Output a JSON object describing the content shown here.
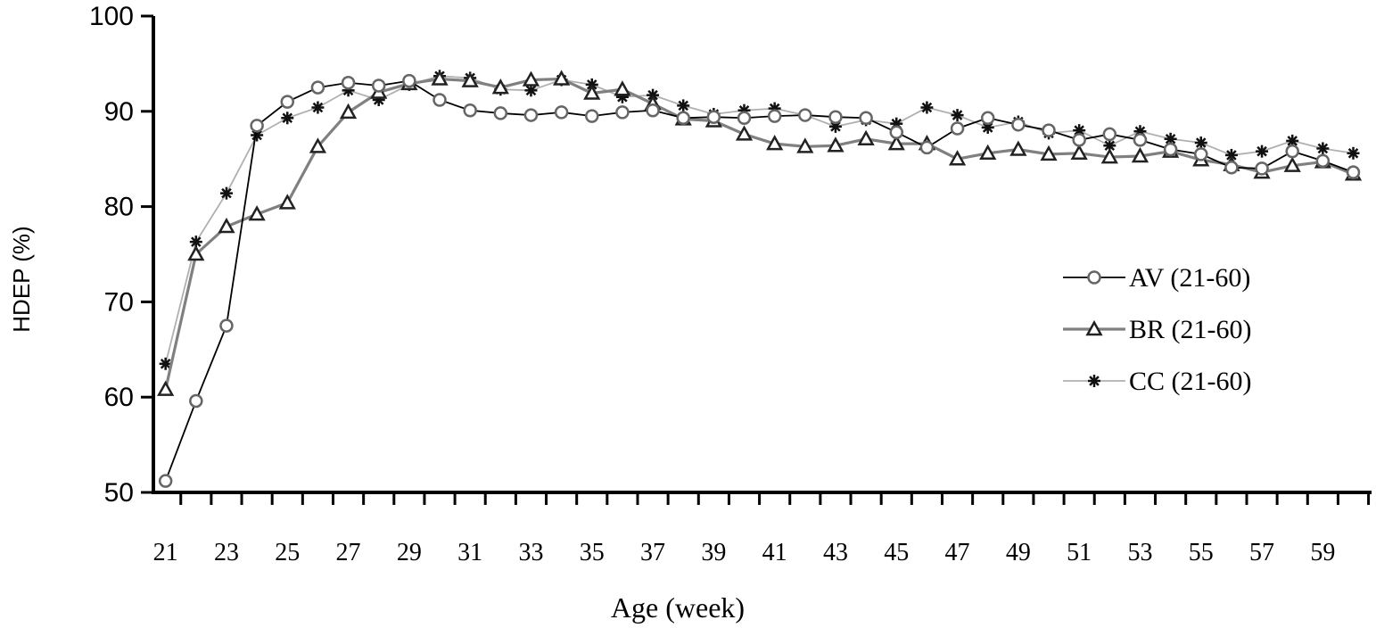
{
  "chart_data": {
    "type": "line",
    "title": "",
    "xlabel": "Age (week)",
    "ylabel": "HDEP (%)",
    "xlim": [
      20.6,
      60.6
    ],
    "ylim": [
      50,
      100
    ],
    "yticks": [
      50,
      60,
      70,
      80,
      90,
      100
    ],
    "xticks": [
      21,
      23,
      25,
      27,
      29,
      31,
      33,
      35,
      37,
      39,
      41,
      43,
      45,
      47,
      49,
      51,
      53,
      55,
      57,
      59
    ],
    "legend_position": "right",
    "x": [
      21,
      22,
      23,
      24,
      25,
      26,
      27,
      28,
      29,
      30,
      31,
      32,
      33,
      34,
      35,
      36,
      37,
      38,
      39,
      40,
      41,
      42,
      43,
      44,
      45,
      46,
      47,
      48,
      49,
      50,
      51,
      52,
      53,
      54,
      55,
      56,
      57,
      58,
      59,
      60
    ],
    "series": [
      {
        "name": "AV (21-60)",
        "marker": "circle",
        "color": "#666666",
        "values": [
          51.2,
          59.6,
          67.5,
          88.5,
          91.0,
          92.5,
          93.0,
          92.7,
          93.2,
          91.2,
          90.1,
          89.8,
          89.6,
          89.9,
          89.5,
          89.9,
          90.1,
          89.3,
          89.4,
          89.3,
          89.5,
          89.6,
          89.4,
          89.3,
          87.8,
          86.2,
          88.2,
          89.3,
          88.6,
          88.0,
          87.0,
          87.6,
          87.0,
          86.0,
          85.5,
          84.1,
          84.0,
          85.8,
          84.8,
          83.6
        ]
      },
      {
        "name": "BR (21-60)",
        "marker": "triangle",
        "color": "#777777",
        "values": [
          60.8,
          75.0,
          77.9,
          79.2,
          80.4,
          86.3,
          89.9,
          92.0,
          92.9,
          93.4,
          93.2,
          92.5,
          93.3,
          93.4,
          91.9,
          92.3,
          90.8,
          89.2,
          89.0,
          87.6,
          86.6,
          86.3,
          86.4,
          87.1,
          86.6,
          86.6,
          85.0,
          85.6,
          86.0,
          85.5,
          85.6,
          85.2,
          85.3,
          85.8,
          84.9,
          84.4,
          83.6,
          84.3,
          84.7,
          83.4
        ]
      },
      {
        "name": "CC (21-60)",
        "marker": "asterisk",
        "color": "#999999",
        "values": [
          63.5,
          76.3,
          81.4,
          87.5,
          89.3,
          90.4,
          92.2,
          91.2,
          92.8,
          93.7,
          93.5,
          92.3,
          92.2,
          93.3,
          92.8,
          91.5,
          91.7,
          90.6,
          89.7,
          90.1,
          90.3,
          89.6,
          88.4,
          89.1,
          88.7,
          90.4,
          89.6,
          88.3,
          88.9,
          87.7,
          88.0,
          86.4,
          87.9,
          87.1,
          86.7,
          85.4,
          85.8,
          86.9,
          86.1,
          85.6
        ]
      }
    ]
  }
}
